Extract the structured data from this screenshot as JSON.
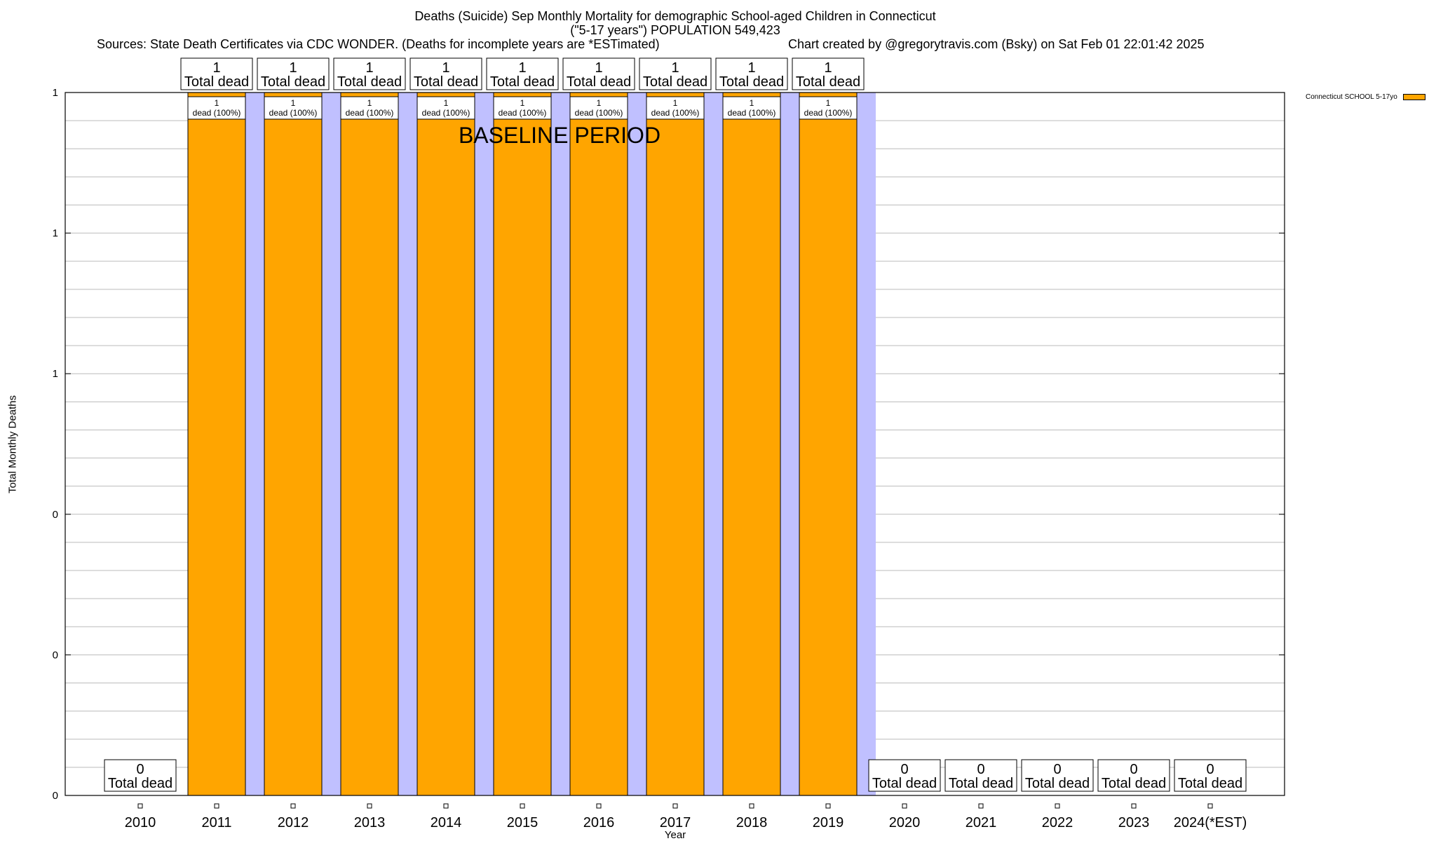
{
  "header": {
    "title_line1": "Deaths (Suicide) Sep Monthly Mortality for demographic School-aged Children in Connecticut",
    "title_line2": "(\"5-17 years\") POPULATION 549,423",
    "sources": "Sources: State Death Certificates via CDC WONDER. (Deaths for incomplete years are *ESTimated)",
    "credit": "Chart created by @gregorytravis.com (Bsky) on Sat Feb 01 22:01:42 2025"
  },
  "chart_data": {
    "type": "bar",
    "xlabel": "Year",
    "ylabel": "Total Monthly Deaths",
    "ylim": [
      0,
      1
    ],
    "y_tick_labels": [
      "0",
      "0",
      "0",
      "1",
      "1",
      "1"
    ],
    "grid": true,
    "legend_position": "top-right",
    "annotation": "BASELINE PERIOD",
    "baseline_period": [
      "2011",
      "2019"
    ],
    "categories": [
      "2010",
      "2011",
      "2012",
      "2013",
      "2014",
      "2015",
      "2016",
      "2017",
      "2018",
      "2019",
      "2020",
      "2021",
      "2022",
      "2023",
      "2024(*EST)"
    ],
    "series": [
      {
        "name": "Connecticut SCHOOL 5-17yo",
        "color": "#FFA500",
        "values": [
          0,
          1,
          1,
          1,
          1,
          1,
          1,
          1,
          1,
          1,
          0,
          0,
          0,
          0,
          0
        ]
      }
    ],
    "total_label_word": "Total dead",
    "bar_label_text": "dead (100%)",
    "colors": {
      "bar": "#FFA500",
      "baseline_band": "#C0C0FF",
      "grid": "#bbbbbb"
    }
  }
}
